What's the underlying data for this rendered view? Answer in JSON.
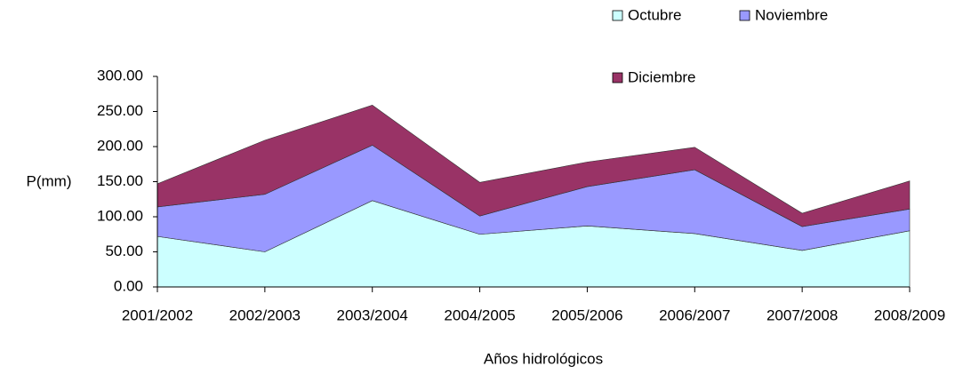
{
  "chart_data": {
    "type": "stacked_area",
    "x_label": "Años hidrológicos",
    "y_label": "P(mm)",
    "categories": [
      "2001/2002",
      "2002/2003",
      "2003/2004",
      "2004/2005",
      "2005/2006",
      "2006/2007",
      "2007/2008",
      "2008/2009"
    ],
    "series": [
      {
        "name": "Octubre",
        "color": "#ccffff",
        "values": [
          72,
          50,
          123,
          75,
          87,
          76,
          52,
          80
        ]
      },
      {
        "name": "Noviembre",
        "color": "#9999ff",
        "values": [
          42,
          82,
          79,
          26,
          56,
          91,
          34,
          31
        ]
      },
      {
        "name": "Diciembre",
        "color": "#993366",
        "values": [
          33,
          77,
          57,
          48,
          35,
          32,
          19,
          40
        ]
      }
    ],
    "ylim": [
      0,
      300
    ],
    "yticks": [
      {
        "value": 0,
        "label": "0.00"
      },
      {
        "value": 50,
        "label": "50.00"
      },
      {
        "value": 100,
        "label": "100.00"
      },
      {
        "value": 150,
        "label": "150.00"
      },
      {
        "value": 200,
        "label": "200.00"
      },
      {
        "value": 250,
        "label": "250.00"
      },
      {
        "value": 300,
        "label": "300.00"
      }
    ],
    "grid": false,
    "legend": "top-right"
  }
}
